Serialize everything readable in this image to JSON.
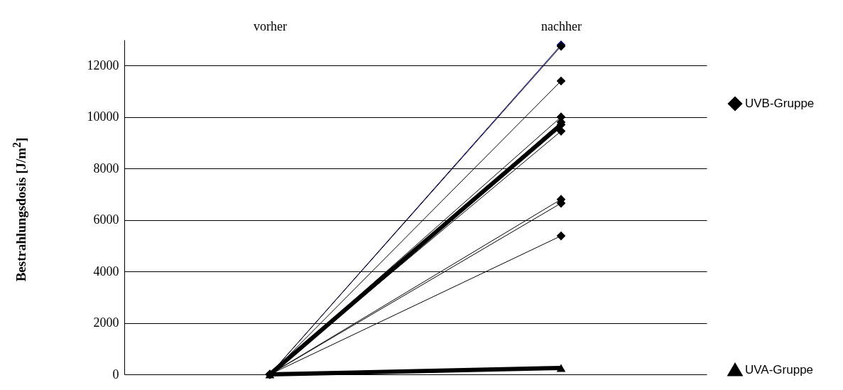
{
  "chart_data": {
    "type": "line",
    "ylabel": "Bestrahlungsdosis [J/m$^{2}$]",
    "categories": [
      "vorher",
      "nachher"
    ],
    "series": [
      {
        "color": "#000080",
        "marker": "diamond",
        "values": [
          0,
          12800
        ]
      },
      {
        "color": "#000000",
        "marker": "diamond",
        "values": [
          0,
          12750
        ]
      },
      {
        "color": "#000000",
        "marker": "diamond",
        "values": [
          0,
          11400
        ]
      },
      {
        "color": "#000000",
        "marker": "diamond",
        "values": [
          0,
          10000
        ]
      },
      {
        "color": "#000000",
        "marker": "diamond",
        "values": [
          0,
          9800
        ]
      },
      {
        "color": "#000000",
        "marker": "diamond",
        "values": [
          0,
          9450
        ]
      },
      {
        "color": "#000000",
        "marker": "diamond",
        "values": [
          0,
          6800
        ]
      },
      {
        "color": "#000000",
        "marker": "diamond",
        "values": [
          0,
          6650
        ]
      },
      {
        "color": "#000000",
        "marker": "diamond",
        "values": [
          0,
          5380
        ]
      },
      {
        "name": "UVB-Gruppe",
        "color": "#000000",
        "marker": "diamond",
        "values": [
          0,
          9700
        ]
      },
      {
        "name": "UVA-Gruppe",
        "color": "#000000",
        "marker": "triangle",
        "values": [
          0,
          250
        ]
      }
    ],
    "ylim": [
      0,
      13000
    ],
    "yticks": [
      0,
      2000,
      4000,
      6000,
      8000,
      10000,
      12000
    ],
    "grid": "y",
    "legend": "right"
  }
}
